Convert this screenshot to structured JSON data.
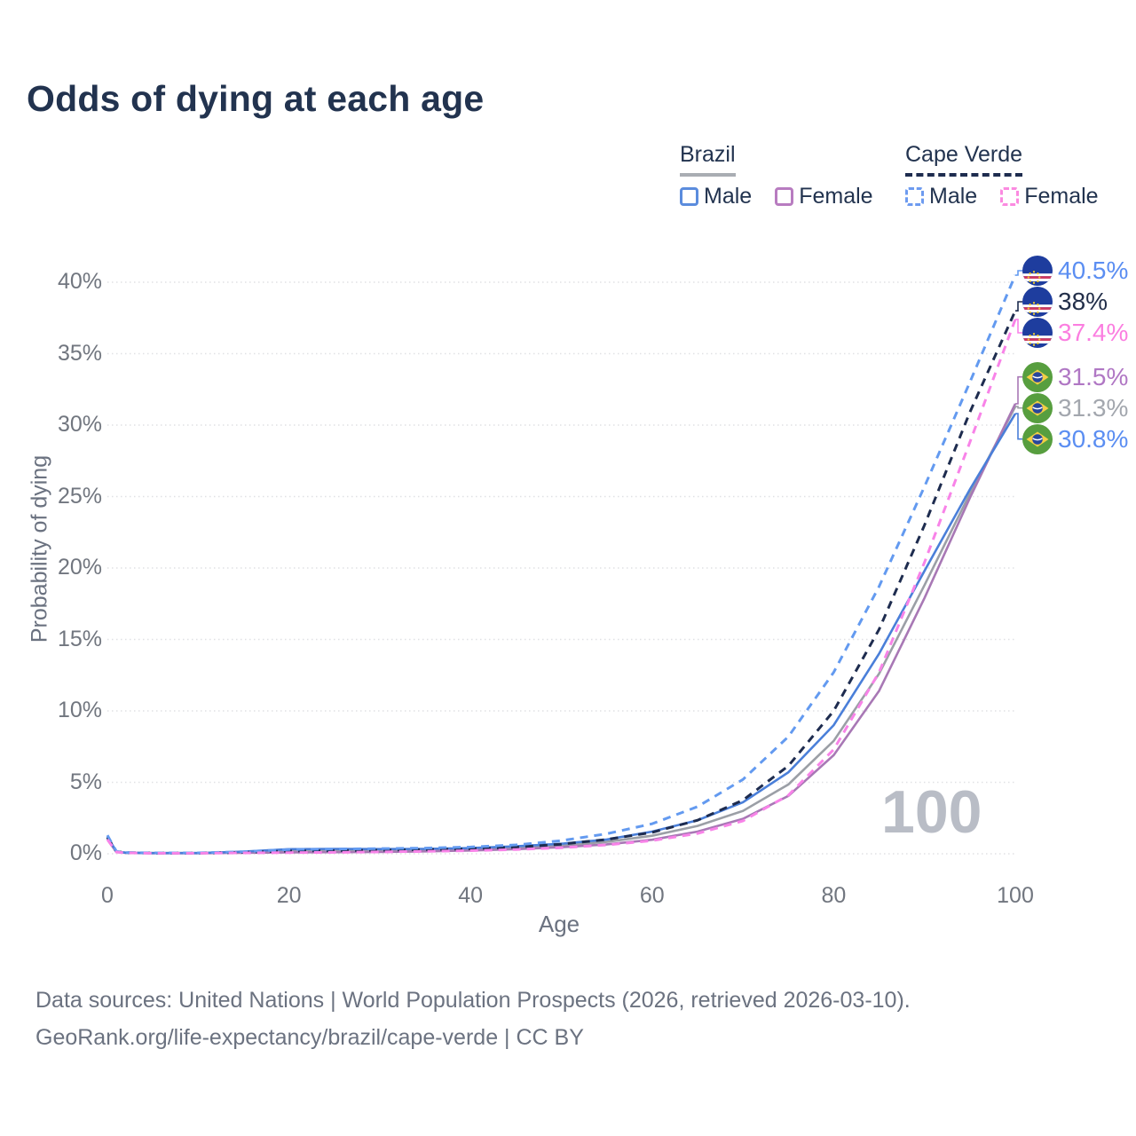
{
  "title": "Odds of dying at each age",
  "watermark": "100",
  "colors": {
    "title_text": "#22334f",
    "axis_text": "#71767f",
    "gridline": "#e0e1e4",
    "watermark": "#b9bdc6",
    "footer_text": "#6b7280"
  },
  "legend": {
    "groups": [
      {
        "id": "brazil",
        "label": "Brazil",
        "underline_style": "solid",
        "underline_color": "#a9adb3",
        "items": [
          {
            "label": "Male",
            "swatch_color": "#5b8cdd",
            "swatch_style": "solid"
          },
          {
            "label": "Female",
            "swatch_color": "#b87cc0",
            "swatch_style": "solid"
          }
        ]
      },
      {
        "id": "cape-verde",
        "label": "Cape Verde",
        "underline_style": "dashed",
        "underline_color": "#1e2c4f",
        "items": [
          {
            "label": "Male",
            "swatch_color": "#6d9bf0",
            "swatch_style": "dashed"
          },
          {
            "label": "Female",
            "swatch_color": "#fb8ae0",
            "swatch_style": "dashed"
          }
        ]
      }
    ]
  },
  "chart_data": {
    "type": "line",
    "title": "Odds of dying at each age",
    "xlabel": "Age",
    "ylabel": "Probability of dying",
    "xlim": [
      0,
      100
    ],
    "ylim": [
      0,
      40
    ],
    "grid": "horizontal-dotted",
    "xticks": [
      0,
      20,
      40,
      60,
      80,
      100
    ],
    "yticks": [
      0,
      5,
      10,
      15,
      20,
      25,
      30,
      35,
      40
    ],
    "ytick_labels": [
      "0%",
      "5%",
      "10%",
      "15%",
      "20%",
      "25%",
      "30%",
      "35%",
      "40%"
    ],
    "x": [
      0,
      1,
      2,
      5,
      10,
      15,
      20,
      25,
      30,
      35,
      40,
      45,
      50,
      55,
      60,
      65,
      70,
      75,
      80,
      85,
      90,
      95,
      100
    ],
    "series": [
      {
        "name": "Brazil Both sexes",
        "country": "brazil",
        "sex": "both",
        "color": "#9b9fa6",
        "dash": "solid",
        "values": [
          1.1,
          0.14,
          0.07,
          0.05,
          0.05,
          0.11,
          0.21,
          0.23,
          0.23,
          0.26,
          0.32,
          0.42,
          0.58,
          0.83,
          1.26,
          1.95,
          3.0,
          4.85,
          7.9,
          12.6,
          18.8,
          25.2,
          31.3
        ],
        "end_label": {
          "text": "31.3%",
          "color": "#a3a7ae"
        }
      },
      {
        "name": "Brazil Female",
        "country": "brazil",
        "sex": "female",
        "color": "#a878b5",
        "dash": "solid",
        "values": [
          1.0,
          0.12,
          0.06,
          0.04,
          0.04,
          0.07,
          0.1,
          0.11,
          0.13,
          0.17,
          0.23,
          0.32,
          0.46,
          0.66,
          0.98,
          1.55,
          2.45,
          4.05,
          6.9,
          11.4,
          17.9,
          24.9,
          31.5
        ],
        "end_label": {
          "text": "31.5%",
          "color": "#b077c4"
        }
      },
      {
        "name": "Brazil Male",
        "country": "brazil",
        "sex": "male",
        "color": "#4a7fd9",
        "dash": "solid",
        "values": [
          1.2,
          0.15,
          0.08,
          0.05,
          0.05,
          0.15,
          0.32,
          0.34,
          0.33,
          0.34,
          0.4,
          0.52,
          0.7,
          1.0,
          1.55,
          2.35,
          3.6,
          5.7,
          9.0,
          14.0,
          19.8,
          25.5,
          30.8
        ],
        "end_label": {
          "text": "30.8%",
          "color": "#5b8ef2"
        }
      },
      {
        "name": "Cape Verde Both sexes",
        "country": "cape-verde",
        "sex": "both",
        "color": "#1e2c4f",
        "dash": "dashed",
        "values": [
          1.15,
          0.14,
          0.08,
          0.05,
          0.05,
          0.1,
          0.19,
          0.22,
          0.25,
          0.29,
          0.35,
          0.46,
          0.67,
          1.0,
          1.5,
          2.35,
          3.75,
          6.15,
          10.0,
          15.7,
          23.0,
          30.9,
          38.0
        ],
        "end_label": {
          "text": "38%",
          "color": "#222e49"
        }
      },
      {
        "name": "Cape Verde Male",
        "country": "cape-verde",
        "sex": "male",
        "color": "#639af0",
        "dash": "dashed",
        "values": [
          1.3,
          0.16,
          0.09,
          0.06,
          0.06,
          0.14,
          0.3,
          0.33,
          0.36,
          0.4,
          0.47,
          0.62,
          0.92,
          1.4,
          2.1,
          3.3,
          5.2,
          8.2,
          12.7,
          18.7,
          25.7,
          33.0,
          40.5
        ],
        "end_label": {
          "text": "40.5%",
          "color": "#5b8ef2"
        }
      },
      {
        "name": "Cape Verde Female",
        "country": "cape-verde",
        "sex": "female",
        "color": "#f883e8",
        "dash": "dashed",
        "values": [
          1.0,
          0.12,
          0.06,
          0.04,
          0.04,
          0.06,
          0.08,
          0.1,
          0.13,
          0.17,
          0.22,
          0.3,
          0.42,
          0.62,
          0.92,
          1.42,
          2.3,
          4.1,
          7.3,
          12.7,
          20.4,
          28.8,
          37.4
        ],
        "end_label": {
          "text": "37.4%",
          "color": "#fb7ee0"
        }
      }
    ]
  },
  "footer": {
    "line1": "Data sources: United Nations | World Population Prospects (2026, retrieved 2026-03-10).",
    "line2": "GeoRank.org/life-expectancy/brazil/cape-verde | CC BY"
  }
}
